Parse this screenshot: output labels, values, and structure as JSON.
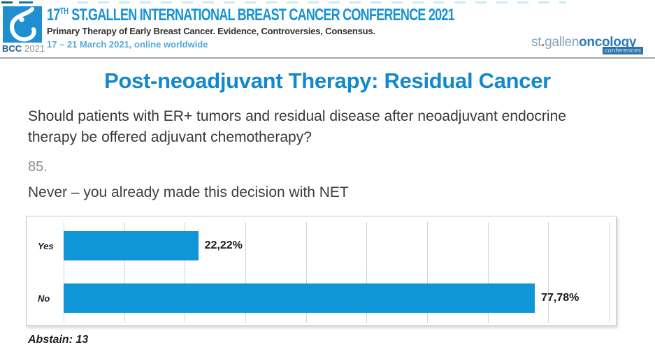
{
  "header": {
    "logo": {
      "bcc": "BCC",
      "year": "2021"
    },
    "title_prefix": "17",
    "title_sup": "TH",
    "title_rest": "ST.GALLEN INTERNATIONAL BREAST CANCER CONFERENCE 2021",
    "subtitle": "Primary Therapy of Early Breast Cancer. Evidence, Controversies, Consensus.",
    "dates": "17 – 21 March 2021, online worldwide",
    "brand": {
      "part1": "st",
      "dot": ".",
      "part2": "gallen",
      "part3": "oncology",
      "sub": "conferences"
    }
  },
  "slide": {
    "title": "Post-neoadjuvant Therapy: Residual Cancer",
    "question": "Should patients with ER+ tumors and residual disease after neoadjuvant endocrine therapy be offered adjuvant chemotherapy?",
    "item_number": "85.",
    "statement": "Never – you already made this decision with NET"
  },
  "chart_data": {
    "type": "bar",
    "orientation": "horizontal",
    "title": "",
    "categories": [
      "Yes",
      "No"
    ],
    "values": [
      22.22,
      77.78
    ],
    "value_labels": [
      "22,22%",
      "77,78%"
    ],
    "axis": {
      "min": 0,
      "max_visible": 91,
      "gridline_step_percent": 10,
      "grid": true
    },
    "legend": "none",
    "bar_color": "#0e96d8",
    "abstain_label": "Abstain: 13"
  },
  "colors": {
    "accent_title": "#1488cc",
    "header_blue": "#1792d2",
    "bar_blue": "#0e96d8",
    "brand_orange": "#cf5f2a",
    "logo_blue": "#1f8fd0"
  }
}
